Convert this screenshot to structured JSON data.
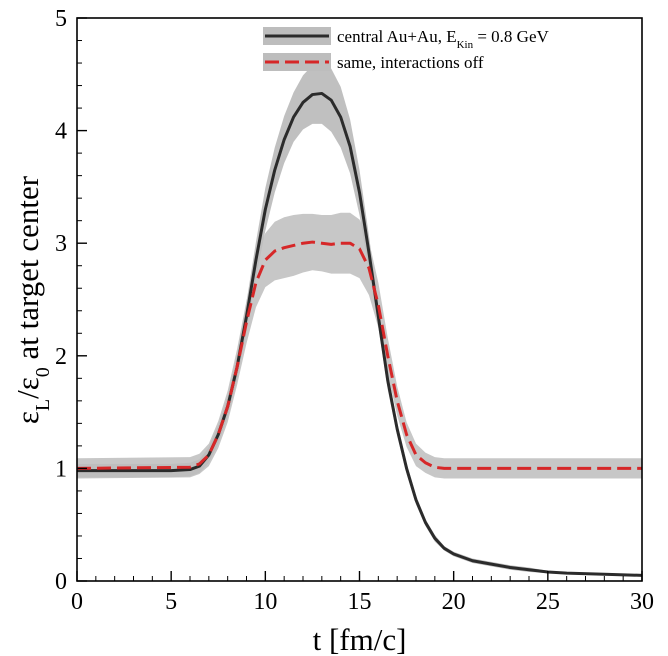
{
  "chart_data": {
    "type": "line",
    "title": "",
    "xlabel": "t [fm/c]",
    "ylabel": {
      "parts": [
        {
          "text": "ε",
          "style": "normal"
        },
        {
          "text": "L",
          "style": "sub"
        },
        {
          "text": "/ε",
          "style": "normal"
        },
        {
          "text": "0",
          "style": "sub"
        },
        {
          "text": " at target center",
          "style": "normal"
        }
      ]
    },
    "xlim": [
      0,
      30
    ],
    "ylim": [
      0,
      5
    ],
    "xticks": [
      0,
      5,
      10,
      15,
      20,
      25,
      30
    ],
    "yticks": [
      0,
      1,
      2,
      3,
      4,
      5
    ],
    "grid": false,
    "legend_position": "top-right",
    "band_color": "#bdbdbd",
    "series": [
      {
        "name": "central Au+Au, E_Kin = 0.8 GeV",
        "legend": {
          "parts": [
            {
              "text": "central Au+Au, E",
              "style": "normal"
            },
            {
              "text": "Kin",
              "style": "sub"
            },
            {
              "text": " = 0.8 GeV",
              "style": "normal"
            }
          ]
        },
        "color": "#2b2b2b",
        "dash": "solid",
        "x": [
          0,
          5,
          6,
          6.5,
          7,
          7.5,
          8,
          8.5,
          9,
          9.5,
          10,
          10.5,
          11,
          11.5,
          12,
          12.5,
          13,
          13.5,
          14,
          14.5,
          15,
          15.5,
          16,
          16.5,
          17,
          17.5,
          18,
          18.5,
          19,
          19.5,
          20,
          21,
          22,
          23,
          24,
          25,
          26,
          28,
          30
        ],
        "y": [
          0.98,
          0.98,
          0.99,
          1.02,
          1.12,
          1.3,
          1.55,
          1.9,
          2.35,
          2.85,
          3.3,
          3.65,
          3.92,
          4.12,
          4.25,
          4.32,
          4.33,
          4.27,
          4.12,
          3.86,
          3.45,
          2.92,
          2.35,
          1.78,
          1.35,
          1.0,
          0.72,
          0.52,
          0.38,
          0.29,
          0.24,
          0.18,
          0.15,
          0.12,
          0.1,
          0.08,
          0.07,
          0.06,
          0.05
        ],
        "band": [
          0.06,
          0.06,
          0.06,
          0.06,
          0.07,
          0.08,
          0.09,
          0.11,
          0.13,
          0.16,
          0.19,
          0.2,
          0.21,
          0.22,
          0.24,
          0.26,
          0.27,
          0.28,
          0.27,
          0.24,
          0.2,
          0.15,
          0.1,
          0.08,
          0.06,
          0.05,
          0.04,
          0.03,
          0.03,
          0.02,
          0.02,
          0.02,
          0.02,
          0.02,
          0.02,
          0.01,
          0.01,
          0.01,
          0.01
        ]
      },
      {
        "name": "same, interactions off",
        "legend": {
          "parts": [
            {
              "text": "same, interactions off",
              "style": "normal"
            }
          ]
        },
        "color": "#d62728",
        "dash": "dashed",
        "x": [
          0,
          6,
          6.5,
          7,
          7.5,
          8,
          8.5,
          9,
          9.5,
          10,
          10.5,
          11,
          11.5,
          12,
          12.5,
          13,
          13.5,
          14,
          14.5,
          15,
          15.5,
          16,
          16.5,
          17,
          17.5,
          18,
          18.5,
          19,
          19.5,
          20,
          25,
          30
        ],
        "y": [
          1.0,
          1.01,
          1.04,
          1.12,
          1.3,
          1.55,
          1.9,
          2.3,
          2.65,
          2.85,
          2.93,
          2.96,
          2.98,
          3.0,
          3.01,
          3.0,
          2.99,
          3.0,
          3.0,
          2.95,
          2.78,
          2.45,
          2.0,
          1.6,
          1.3,
          1.12,
          1.05,
          1.01,
          1.0,
          1.0,
          1.0,
          1.0
        ],
        "band": [
          0.09,
          0.09,
          0.09,
          0.1,
          0.12,
          0.14,
          0.16,
          0.19,
          0.22,
          0.24,
          0.26,
          0.27,
          0.27,
          0.26,
          0.25,
          0.25,
          0.26,
          0.27,
          0.27,
          0.26,
          0.24,
          0.2,
          0.16,
          0.13,
          0.11,
          0.1,
          0.09,
          0.09,
          0.09,
          0.09,
          0.09,
          0.09
        ]
      }
    ]
  }
}
